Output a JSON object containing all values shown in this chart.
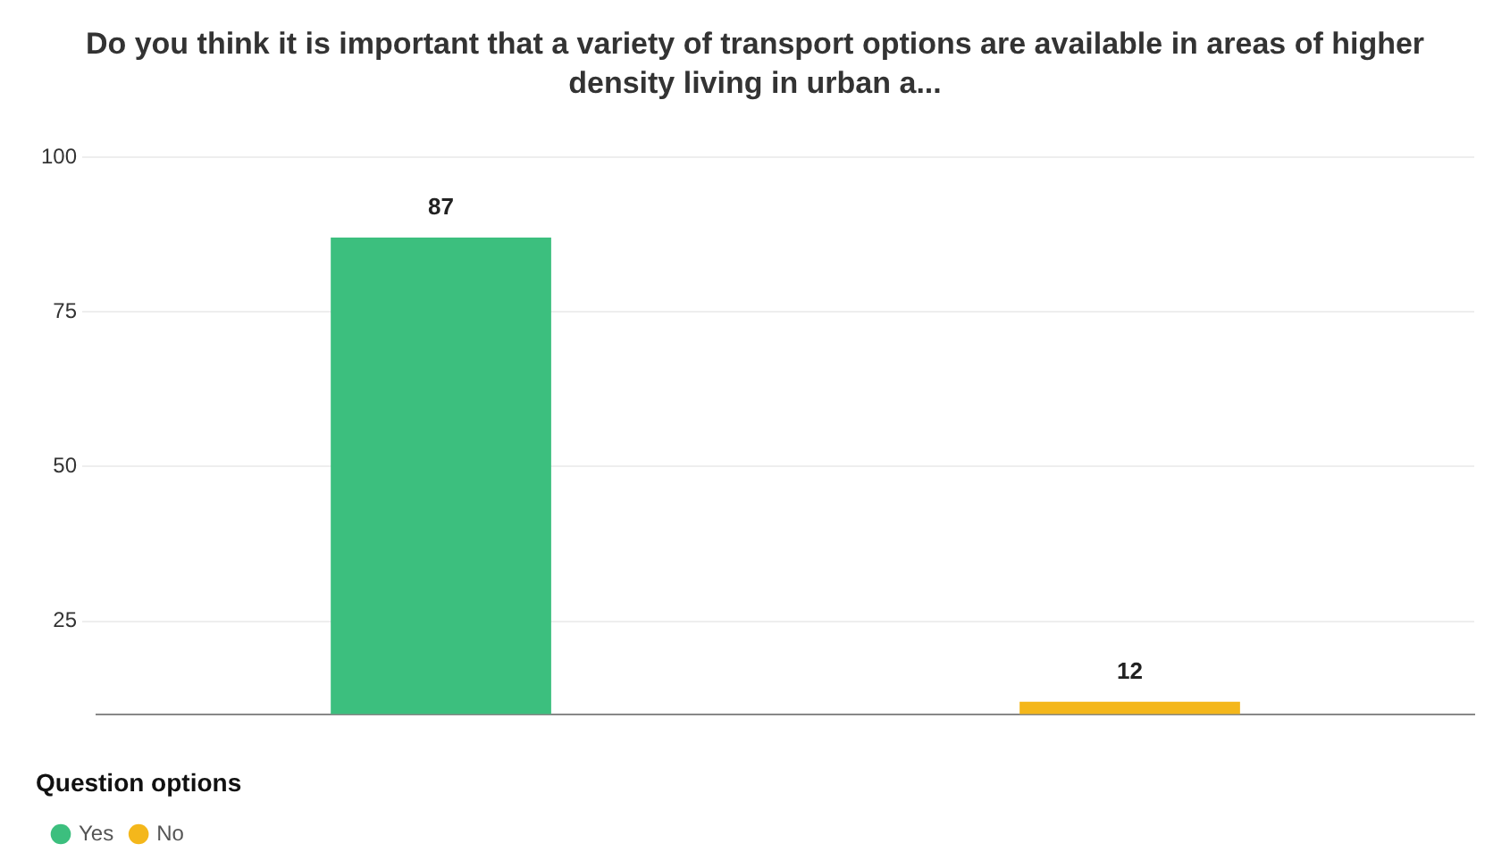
{
  "chart_data": {
    "type": "bar",
    "title": "Do you think it is important that a variety of transport options are available in areas of higher density living in urban a...",
    "categories": [
      null,
      null
    ],
    "series": [
      {
        "name": "Yes",
        "color": "#3cbf7e",
        "values": [
          87,
          null
        ]
      },
      {
        "name": "No",
        "color": "#f4b71b",
        "values": [
          null,
          12
        ]
      }
    ],
    "ylim": [
      10,
      100
    ],
    "yticks": [
      25,
      50,
      75,
      100
    ],
    "grid": "y",
    "legend": "bottom left",
    "legend_title": "Question options",
    "data_labels": true
  }
}
